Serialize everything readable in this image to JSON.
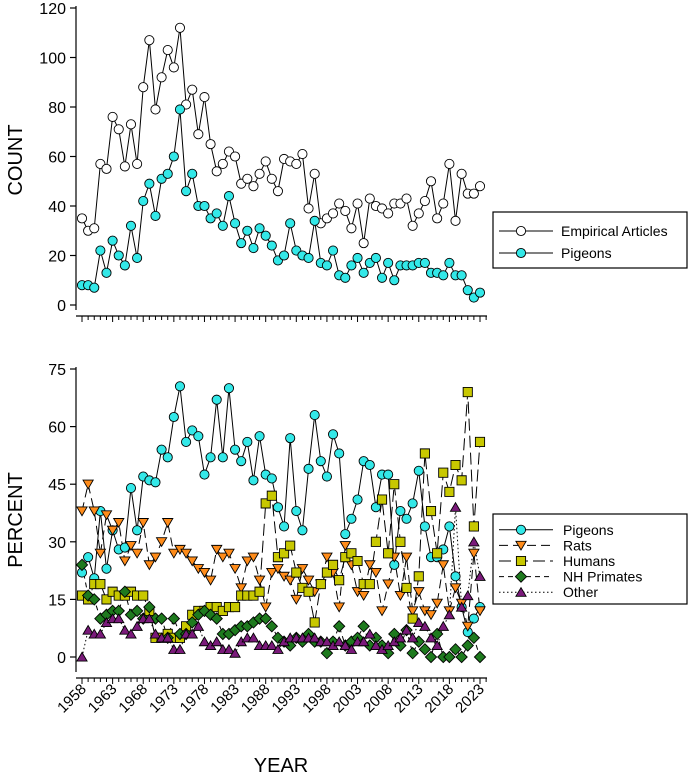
{
  "chart_data": [
    {
      "type": "line",
      "ylabel": "COUNT",
      "xlabel": "",
      "ylim": [
        0,
        120
      ],
      "yticks": [
        0,
        20,
        40,
        60,
        80,
        100,
        120
      ],
      "xlim": [
        1957,
        2024
      ],
      "grid": false,
      "legend_position": "right",
      "x_start": 1958,
      "series": [
        {
          "name": "Empirical Articles",
          "color": "#ffffff",
          "marker": "circle",
          "dash": "",
          "values": [
            35,
            30,
            31,
            57,
            55,
            76,
            71,
            56,
            73,
            57,
            88,
            107,
            79,
            92,
            103,
            96,
            112,
            81,
            87,
            69,
            84,
            65,
            54,
            57,
            62,
            60,
            49,
            51,
            48,
            53,
            58,
            51,
            46,
            59,
            58,
            57,
            61,
            39,
            53,
            33,
            35,
            37,
            41,
            38,
            31,
            41,
            25,
            43,
            40,
            39,
            37,
            41,
            41,
            43,
            32,
            37,
            42,
            50,
            35,
            41,
            57,
            34,
            53,
            45,
            45,
            48
          ]
        },
        {
          "name": "Pigeons",
          "color": "#33e8e8",
          "marker": "circle",
          "dash": "",
          "values": [
            8,
            8,
            7,
            22,
            13,
            26,
            20,
            16,
            32,
            19,
            42,
            49,
            36,
            51,
            53,
            60,
            79,
            46,
            53,
            40,
            40,
            35,
            37,
            32,
            44,
            33,
            25,
            30,
            23,
            31,
            28,
            24,
            18,
            20,
            33,
            22,
            20,
            19,
            34,
            17,
            16,
            22,
            12,
            11,
            16,
            19,
            13,
            17,
            19,
            11,
            17,
            10,
            16,
            16,
            16,
            17,
            17,
            13,
            13,
            12,
            17,
            12,
            12,
            6,
            3,
            5
          ]
        }
      ]
    },
    {
      "type": "line",
      "ylabel": "PERCENT",
      "xlabel": "YEAR",
      "ylim": [
        0,
        75
      ],
      "yticks": [
        0,
        15,
        30,
        45,
        60,
        75
      ],
      "xlim": [
        1957,
        2024
      ],
      "xticks": [
        "1958",
        "1963",
        "1968",
        "1973",
        "1978",
        "1983",
        "1988",
        "1993",
        "1998",
        "2003",
        "2008",
        "2013",
        "2018",
        "2023"
      ],
      "grid": false,
      "legend_position": "right",
      "x_start": 1958,
      "series": [
        {
          "name": "Pigeons",
          "color": "#33e8e8",
          "marker": "circle",
          "dash": "",
          "values": [
            22,
            26,
            20.5,
            38,
            23,
            33,
            28,
            28.5,
            44,
            33,
            47,
            46,
            45.5,
            54,
            52,
            62.5,
            70.5,
            56,
            59,
            57.5,
            47.5,
            52,
            67,
            52,
            70,
            54,
            51,
            56,
            46,
            57.5,
            47.5,
            46.5,
            39,
            34,
            57,
            38,
            33,
            49,
            63,
            51,
            47,
            58,
            53,
            32,
            36,
            41,
            51,
            50,
            39,
            47.5,
            47.5,
            24,
            38,
            36,
            40,
            48.5,
            34,
            26,
            26,
            28,
            34,
            21,
            13,
            6.5,
            10,
            13
          ]
        },
        {
          "name": "Rats",
          "color": "#ff8c1a",
          "marker": "triangle-down",
          "dash": "9,5",
          "values": [
            38,
            45,
            38,
            27,
            37,
            33,
            35,
            25,
            29,
            27,
            35,
            24,
            26,
            30,
            35,
            27,
            28,
            27,
            25,
            23,
            22,
            20,
            28,
            26,
            27,
            23,
            18,
            25,
            26,
            20,
            13,
            22,
            23,
            21,
            20,
            15,
            23,
            20,
            17,
            19,
            26,
            22,
            13,
            29,
            24,
            17,
            16,
            24,
            22,
            12,
            19,
            26,
            16,
            26,
            12,
            17,
            12,
            11,
            14,
            24,
            12,
            18,
            14,
            8,
            27,
            12
          ]
        },
        {
          "name": "Humans",
          "color": "#c8c800",
          "marker": "square",
          "dash": "12,5",
          "values": [
            16,
            15,
            19,
            19,
            15,
            17,
            16,
            16,
            17,
            16,
            16,
            12,
            5,
            5,
            6,
            5,
            5,
            8,
            11,
            12,
            12,
            13,
            13,
            12,
            13,
            13,
            16,
            16,
            16,
            17,
            40,
            42,
            26,
            27,
            29,
            22,
            18,
            17,
            9,
            19,
            22,
            24,
            20,
            26,
            27,
            25,
            19,
            19,
            30,
            41,
            27,
            45,
            30,
            18,
            10,
            21,
            53,
            38,
            27,
            48,
            43,
            50,
            46,
            69,
            34,
            56
          ]
        },
        {
          "name": "NH Primates",
          "color": "#1e7a1e",
          "marker": "diamond",
          "dash": "5,4",
          "values": [
            24,
            16,
            15,
            10,
            11,
            12,
            12,
            17,
            11,
            12,
            10,
            13,
            10,
            10,
            5,
            10,
            6,
            6,
            9,
            11,
            12,
            11,
            10,
            6,
            6,
            7,
            8,
            8,
            9,
            10,
            10,
            8,
            5,
            4,
            3,
            5,
            4,
            6,
            4,
            4,
            1,
            4,
            8,
            3,
            4,
            5,
            8,
            3,
            5,
            3,
            1,
            6,
            3,
            7,
            1,
            4,
            2,
            0,
            6,
            0,
            0,
            2,
            0,
            3,
            5,
            0
          ]
        },
        {
          "name": "Other",
          "color": "#7a1a7a",
          "marker": "triangle-up",
          "dash": "1.5,2.5",
          "values": [
            0,
            7,
            6,
            6,
            9,
            10,
            10,
            7,
            6,
            8,
            10,
            10,
            6,
            5,
            5,
            2,
            2,
            6,
            6,
            8,
            4,
            3,
            4,
            2,
            2,
            1,
            4,
            5,
            5,
            3,
            3,
            3,
            2,
            4,
            5,
            5,
            5,
            5,
            5,
            4,
            4,
            3,
            4,
            3,
            2,
            4,
            4,
            6,
            3,
            2,
            3,
            4,
            5,
            7,
            5,
            9,
            8,
            5,
            3,
            8,
            11,
            39,
            13,
            16,
            30,
            21
          ]
        }
      ]
    }
  ]
}
